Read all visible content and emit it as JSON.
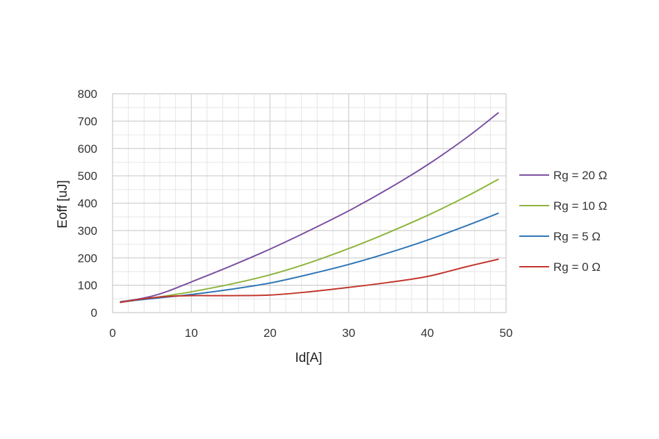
{
  "chart_data": {
    "type": "line",
    "title": "",
    "xlabel": "Id[A]",
    "ylabel": "Eoff [uJ]",
    "xlim": [
      0,
      50
    ],
    "ylim": [
      0,
      800
    ],
    "x_ticks": [
      "0",
      "10",
      "20",
      "30",
      "40",
      "50"
    ],
    "y_ticks": [
      "0",
      "100",
      "200",
      "300",
      "400",
      "500",
      "600",
      "700",
      "800"
    ],
    "x_tick_values": [
      0,
      10,
      20,
      30,
      40,
      50
    ],
    "y_tick_values": [
      0,
      100,
      200,
      300,
      400,
      500,
      600,
      700,
      800
    ],
    "grid": true,
    "minor_grid": true,
    "legend_position": "right",
    "series": [
      {
        "name": "Rg = 20 Ω",
        "color": "#7b4fa0",
        "x": [
          1,
          3,
          5,
          7,
          10,
          15,
          20,
          25,
          30,
          35,
          40,
          45,
          49
        ],
        "y": [
          40,
          48,
          60,
          78,
          112,
          170,
          232,
          300,
          372,
          452,
          540,
          640,
          730
        ]
      },
      {
        "name": "Rg = 10 Ω",
        "color": "#8db33a",
        "x": [
          1,
          3,
          5,
          7,
          10,
          15,
          20,
          25,
          30,
          35,
          40,
          45,
          49
        ],
        "y": [
          38,
          46,
          53,
          62,
          76,
          104,
          138,
          182,
          234,
          292,
          355,
          425,
          487
        ]
      },
      {
        "name": "Rg = 5 Ω",
        "color": "#2e75b6",
        "x": [
          1,
          3,
          5,
          7,
          10,
          15,
          20,
          25,
          30,
          35,
          40,
          45,
          49
        ],
        "y": [
          38,
          45,
          51,
          57,
          66,
          85,
          108,
          140,
          176,
          218,
          265,
          318,
          363
        ]
      },
      {
        "name": "Rg = 0 Ω",
        "color": "#c0352b",
        "x": [
          1,
          3,
          5,
          7,
          10,
          15,
          20,
          25,
          30,
          35,
          40,
          45,
          49
        ],
        "y": [
          37,
          47,
          54,
          59,
          62,
          62,
          64,
          76,
          92,
          110,
          132,
          168,
          195
        ]
      }
    ]
  }
}
